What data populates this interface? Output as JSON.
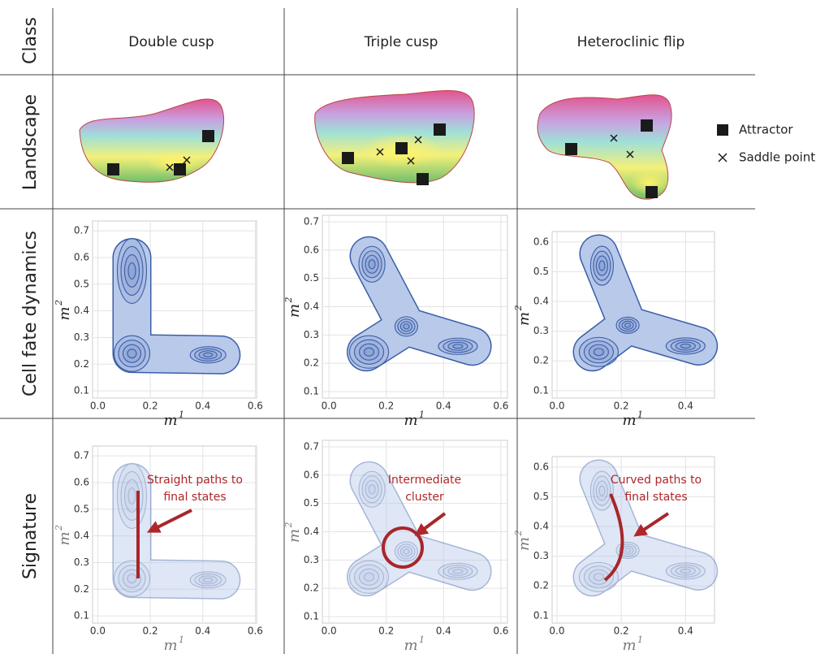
{
  "row_labels": [
    "Class",
    "Landscape",
    "Cell fate dynamics",
    "Signature"
  ],
  "columns": [
    {
      "title": "Double cusp"
    },
    {
      "title": "Triple cusp"
    },
    {
      "title": "Heteroclinic flip"
    }
  ],
  "legend": [
    {
      "label": "Attractor"
    },
    {
      "label": "Saddle point"
    }
  ],
  "x_label": {
    "base": "m",
    "sup": "1"
  },
  "y_label": {
    "base": "m",
    "sup": "2"
  },
  "panels": [
    {
      "xlim": [
        -0.02,
        0.605
      ],
      "ylim": [
        0.073,
        0.737
      ],
      "xticks": [
        {
          "value": 0,
          "label": "0.0"
        },
        0.2,
        0.4,
        0.6
      ],
      "yticks": [
        0.1,
        0.2,
        0.3,
        0.4,
        0.5,
        0.6,
        0.7
      ]
    },
    {
      "xlim": [
        -0.023,
        0.623
      ],
      "ylim": [
        0.077,
        0.723
      ],
      "xticks": [
        {
          "value": 0,
          "label": "0.0"
        },
        0.2,
        0.4,
        0.6
      ],
      "yticks": [
        0.1,
        0.2,
        0.3,
        0.4,
        0.5,
        0.6,
        0.7
      ]
    },
    {
      "xlim": [
        -0.015,
        0.49
      ],
      "ylim": [
        0.075,
        0.635
      ],
      "xticks": [
        {
          "value": 0,
          "label": "0.0"
        },
        0.2,
        0.4
      ],
      "yticks": [
        0.1,
        0.2,
        0.3,
        0.4,
        0.5,
        0.6
      ]
    }
  ],
  "annotations": [
    [
      "Straight paths to",
      "final states"
    ],
    [
      "Intermediate",
      "cluster"
    ],
    [
      "Curved paths to",
      "final states"
    ]
  ]
}
